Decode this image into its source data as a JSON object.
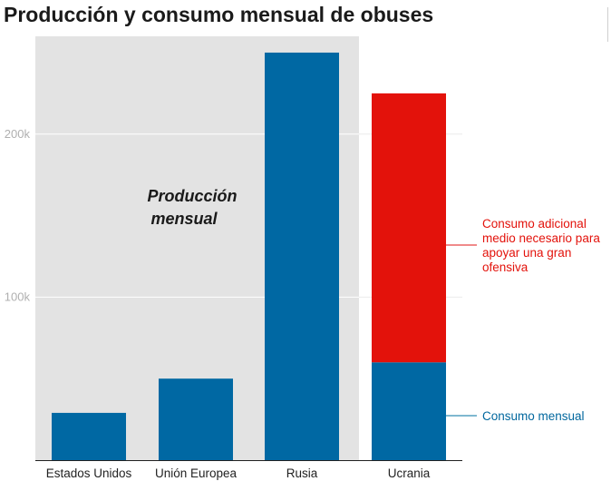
{
  "colors": {
    "production": "#0068a3",
    "additional": "#e3120b",
    "shade": "#e3e3e3",
    "grid": "#ffffff",
    "axis": "#222222",
    "tick_text": "#b0b0b0",
    "ann_red": "#e3120b",
    "ann_blue": "#00679e",
    "leader_red": "#f08a8a",
    "leader_blue": "#7fb8d0"
  },
  "chart_data": {
    "type": "bar",
    "title": "Producción y consumo mensual de obuses",
    "categories": [
      "Estados Unidos",
      "Unión Europea",
      "Rusia",
      "Ucrania"
    ],
    "series": [
      {
        "values": [
          29000,
          50000,
          250000,
          60000
        ]
      },
      {
        "values": [
          0,
          0,
          0,
          165000
        ]
      }
    ],
    "ylim": [
      0,
      260000
    ],
    "yticks": [
      100000,
      200000
    ],
    "ytick_labels": [
      "100k",
      "200k"
    ],
    "grid": true,
    "xlabel": "",
    "ylabel": "",
    "region_label": [
      "Producción",
      "mensual"
    ],
    "annotations": {
      "additional": [
        "Consumo adicional",
        "medio necesario para",
        "apoyar una gran",
        "ofensiva"
      ],
      "monthly": "Consumo mensual"
    }
  }
}
